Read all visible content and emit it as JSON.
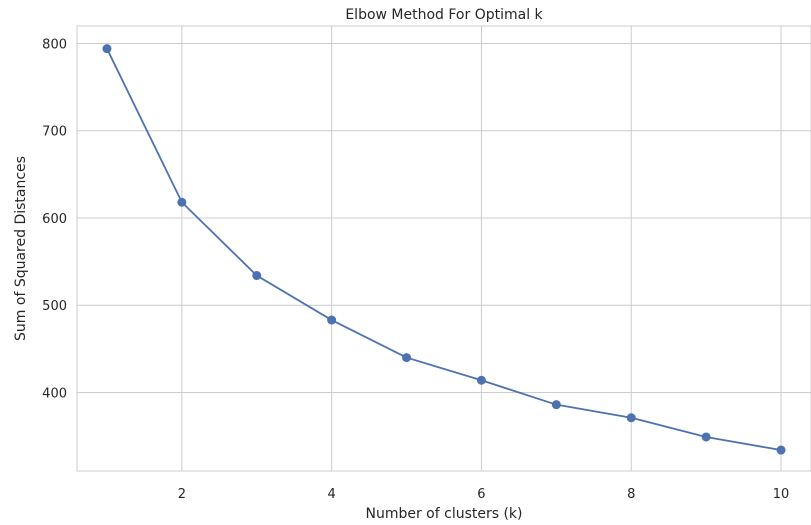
{
  "chart_data": {
    "type": "line",
    "title": "Elbow Method For Optimal k",
    "xlabel": "Number of clusters (k)",
    "ylabel": "Sum of Squared Distances",
    "x": [
      1,
      2,
      3,
      4,
      5,
      6,
      7,
      8,
      9,
      10
    ],
    "series": [
      {
        "values": [
          794,
          618,
          534,
          483,
          440,
          414,
          386,
          371,
          349,
          334
        ],
        "color": "#4c72b0",
        "marker": "circle"
      }
    ],
    "xlim": [
      0.6,
      10.4
    ],
    "ylim": [
      310,
      820
    ],
    "xticks": [
      2,
      4,
      6,
      8,
      10
    ],
    "yticks": [
      400,
      500,
      600,
      700,
      800
    ],
    "grid": true,
    "legend": "none"
  }
}
